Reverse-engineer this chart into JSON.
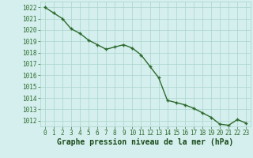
{
  "x": [
    0,
    1,
    2,
    3,
    4,
    5,
    6,
    7,
    8,
    9,
    10,
    11,
    12,
    13,
    14,
    15,
    16,
    17,
    18,
    19,
    20,
    21,
    22,
    23
  ],
  "y": [
    1022.0,
    1021.5,
    1021.0,
    1020.1,
    1019.7,
    1019.1,
    1018.7,
    1018.3,
    1018.5,
    1018.7,
    1018.4,
    1017.8,
    1016.8,
    1015.8,
    1013.8,
    1013.6,
    1013.4,
    1013.1,
    1012.7,
    1012.3,
    1011.7,
    1011.6,
    1012.1,
    1011.8
  ],
  "line_color": "#2d6a2d",
  "marker": "+",
  "marker_color": "#2d6a2d",
  "bg_color": "#d4efed",
  "grid_color": "#aad4cc",
  "xlabel": "Graphe pression niveau de la mer (hPa)",
  "xlabel_color": "#1a4a1a",
  "xlabel_fontsize": 7,
  "ylabel_ticks": [
    1012,
    1013,
    1014,
    1015,
    1016,
    1017,
    1018,
    1019,
    1020,
    1021,
    1022
  ],
  "ylim": [
    1011.5,
    1022.5
  ],
  "xlim": [
    -0.5,
    23.5
  ],
  "tick_color": "#2d6a2d",
  "tick_fontsize": 5.5,
  "linewidth": 1.0,
  "markersize": 3.5
}
